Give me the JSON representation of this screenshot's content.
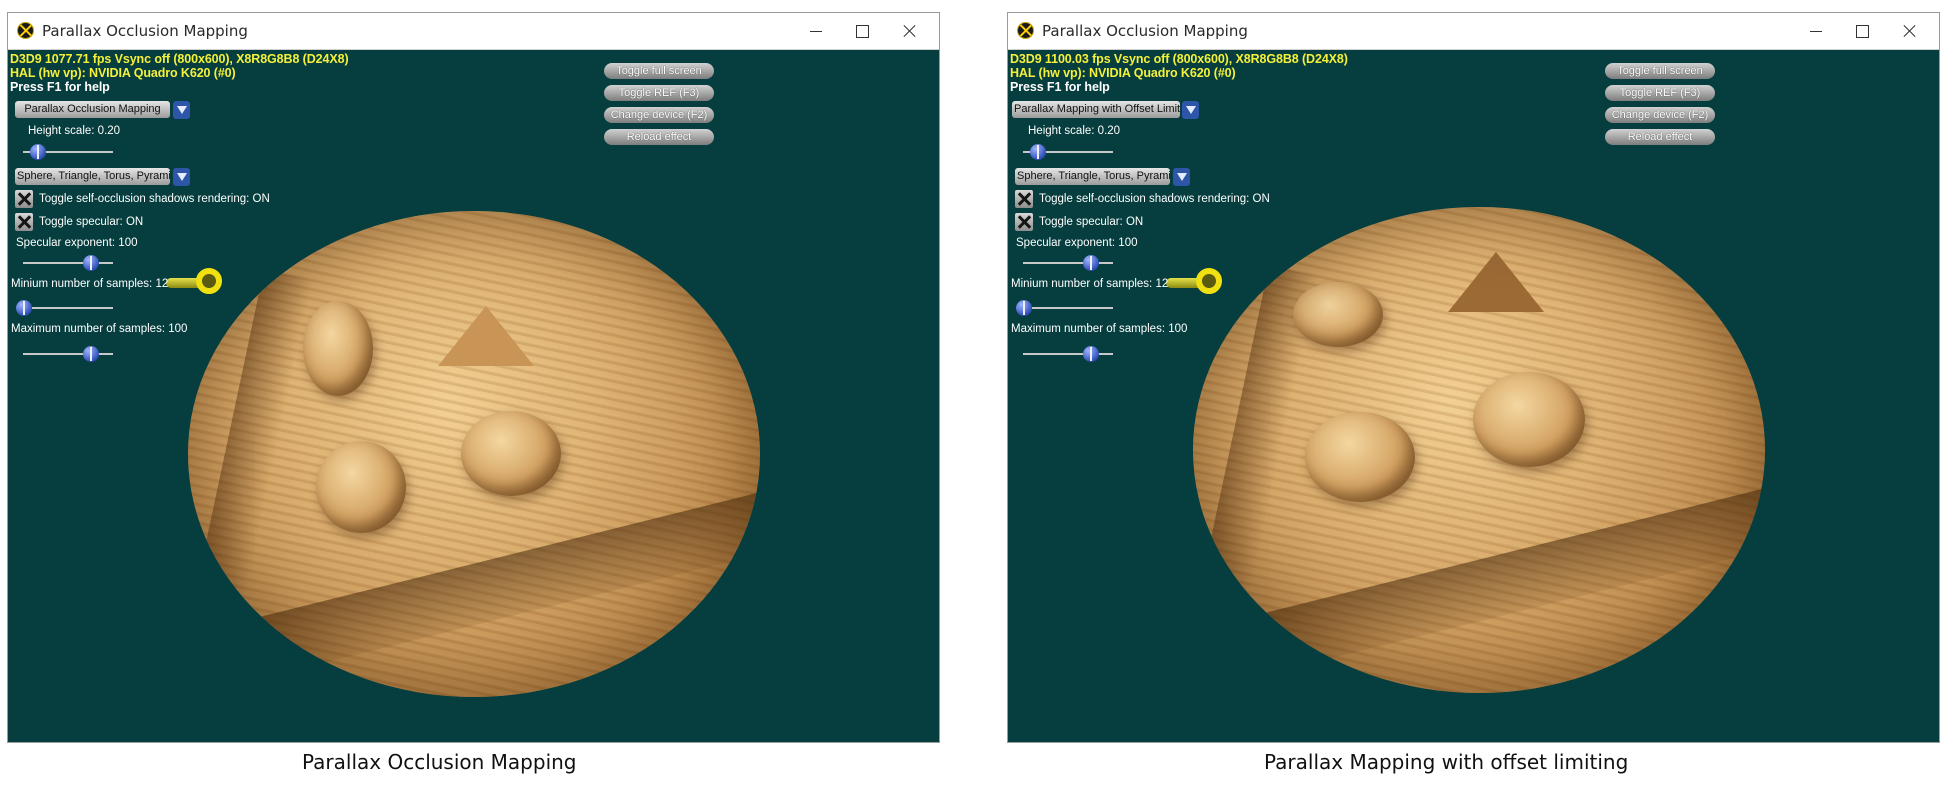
{
  "windows": [
    {
      "title": "Parallax Occlusion Mapping",
      "stats_line1": "D3D9 1077.71 fps Vsync off (800x600), X8R8G8B8 (D24X8)",
      "stats_line2": "HAL (hw vp): NVIDIA Quadro K620 (#0)",
      "help_text": "Press F1 for help",
      "technique_combo": "Parallax Occlusion Mapping",
      "height_scale_label": "Height scale: 0.20",
      "height_scale_value": 0.2,
      "object_combo": "Sphere, Triangle, Torus, Pyramid",
      "shadows_toggle": "Toggle self-occlusion shadows rendering: ON",
      "specular_toggle": "Toggle specular: ON",
      "specular_exponent_label": "Specular exponent: 100",
      "specular_exponent_value": 100,
      "min_samples_label": "Minium number of samples: 12",
      "min_samples_value": 12,
      "max_samples_label": "Maximum number of samples: 100",
      "max_samples_value": 100,
      "buttons": [
        "Toggle full screen",
        "Toggle REF (F3)",
        "Change device (F2)",
        "Reload effect"
      ],
      "caption": "Parallax Occlusion Mapping"
    },
    {
      "title": "Parallax Occlusion Mapping",
      "stats_line1": "D3D9 1100.03 fps Vsync off (800x600), X8R8G8B8 (D24X8)",
      "stats_line2": "HAL (hw vp): NVIDIA Quadro K620 (#0)",
      "help_text": "Press F1 for help",
      "technique_combo": "Parallax Mapping with Offset Limiting",
      "height_scale_label": "Height scale: 0.20",
      "height_scale_value": 0.2,
      "object_combo": "Sphere, Triangle, Torus, Pyramid",
      "shadows_toggle": "Toggle self-occlusion shadows rendering: ON",
      "specular_toggle": "Toggle specular: ON",
      "specular_exponent_label": "Specular exponent: 100",
      "specular_exponent_value": 100,
      "min_samples_label": "Minium number of samples: 12",
      "min_samples_value": 12,
      "max_samples_label": "Maximum number of samples: 100",
      "max_samples_value": 100,
      "buttons": [
        "Toggle full screen",
        "Toggle REF (F3)",
        "Change device (F2)",
        "Reload effect"
      ],
      "caption": "Parallax Mapping with offset limiting"
    }
  ]
}
